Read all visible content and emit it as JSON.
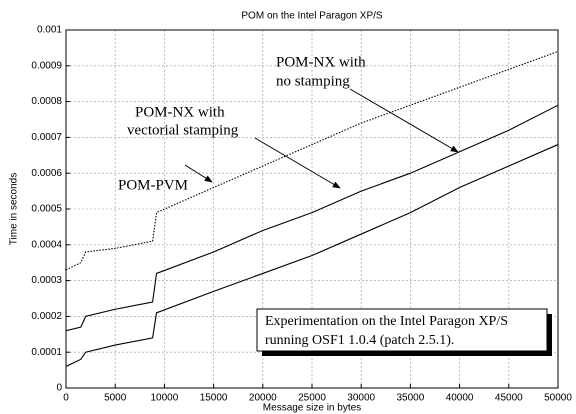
{
  "chart_data": {
    "type": "line",
    "title": "POM on the Intel Paragon XP/S",
    "x_label": "Message size in bytes",
    "y_label": "Time in seconds",
    "x": [
      0,
      1500,
      2000,
      5000,
      8800,
      9200,
      15000,
      20000,
      25000,
      30000,
      35000,
      40000,
      45000,
      50000
    ],
    "series": [
      {
        "color": "#000000",
        "style": "dotted",
        "values": [
          0.00033,
          0.00035,
          0.00038,
          0.00039,
          0.00041,
          0.00049,
          0.00056,
          0.00062,
          0.00068,
          0.00074,
          0.00079,
          0.00084,
          0.00089,
          0.00094
        ]
      },
      {
        "color": "#000000",
        "style": "solid",
        "values": [
          0.00016,
          0.00017,
          0.0002,
          0.00022,
          0.00024,
          0.00032,
          0.00038,
          0.00044,
          0.00049,
          0.00055,
          0.0006,
          0.00066,
          0.00072,
          0.00079
        ]
      },
      {
        "color": "#000000",
        "style": "solid",
        "values": [
          6e-05,
          8e-05,
          0.0001,
          0.00012,
          0.00014,
          0.00021,
          0.00027,
          0.00032,
          0.00037,
          0.00043,
          0.00049,
          0.00056,
          0.00062,
          0.00068
        ]
      }
    ],
    "annotations": [
      "POM-PVM",
      "POM-NX with",
      "vectorial stamping",
      "POM-NX with",
      "no stamping",
      "Experimentation on the Intel Paragon XP/S",
      "running OSF1 1.0.4 (patch 2.5.1)."
    ],
    "xlim": [
      0,
      50000
    ],
    "xticks": [
      0,
      5000,
      10000,
      15000,
      20000,
      25000,
      30000,
      35000,
      40000,
      45000,
      50000
    ],
    "ylim": [
      0,
      0.001
    ],
    "yticks": [
      0,
      0.0001,
      0.0002,
      0.0003,
      0.0004,
      0.0005,
      0.0006,
      0.0007,
      0.0008,
      0.0009,
      0.001
    ],
    "grid": true
  }
}
